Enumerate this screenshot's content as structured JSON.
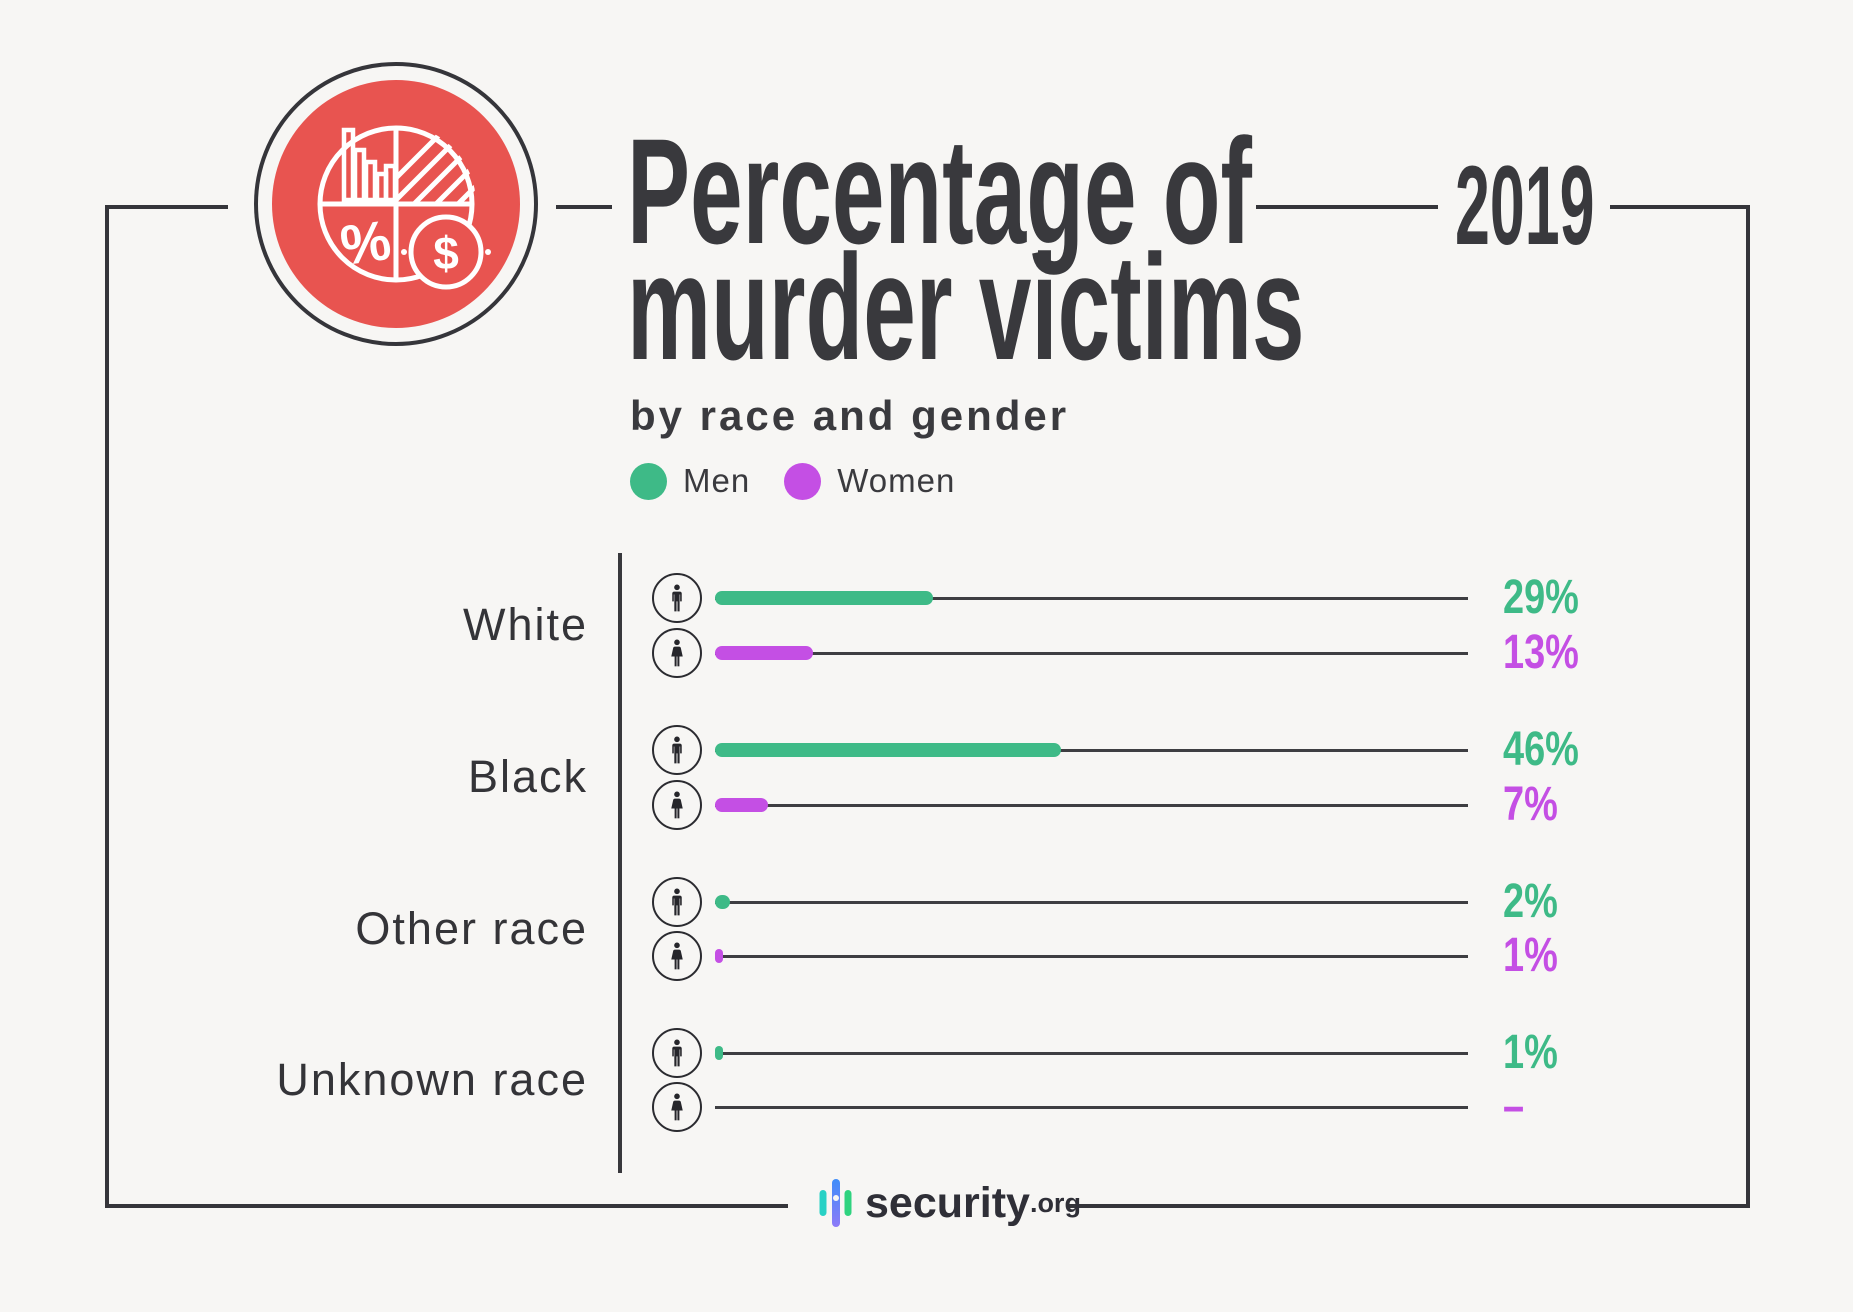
{
  "title": {
    "line1": "Percentage of",
    "line2": "murder victims",
    "year": "2019",
    "subtitle": "by race and gender"
  },
  "legend": [
    {
      "label": "Men",
      "color": "#3eba87"
    },
    {
      "label": "Women",
      "color": "#c44fe4"
    }
  ],
  "colors": {
    "men": "#3eba87",
    "women": "#c44fe4",
    "accent_red": "#e85450",
    "frame": "#35353a",
    "background": "#f7f6f4",
    "text": "#3a3a3e"
  },
  "chart_data": {
    "type": "bar",
    "orientation": "horizontal",
    "title": "Percentage of murder victims",
    "subtitle": "by race and gender",
    "year": "2019",
    "unit": "%",
    "categories": [
      "White",
      "Black",
      "Other race",
      "Unknown race"
    ],
    "series": [
      {
        "name": "Men",
        "color": "#3eba87",
        "values": [
          29,
          46,
          2,
          1
        ]
      },
      {
        "name": "Women",
        "color": "#c44fe4",
        "values": [
          13,
          7,
          1,
          null
        ]
      }
    ],
    "xlim": [
      0,
      100
    ],
    "value_labels": {
      "men": [
        "29%",
        "46%",
        "2%",
        "1%"
      ],
      "women": [
        "13%",
        "7%",
        "1%",
        "–"
      ]
    },
    "legend_position": "top-left",
    "grid": false,
    "source": "security.org"
  },
  "rows": [
    {
      "category": "White",
      "men": {
        "label": "29%",
        "pct": 29,
        "color": "#3eba87"
      },
      "women": {
        "label": "13%",
        "pct": 13,
        "color": "#c44fe4"
      }
    },
    {
      "category": "Black",
      "men": {
        "label": "46%",
        "pct": 46,
        "color": "#3eba87"
      },
      "women": {
        "label": "7%",
        "pct": 7,
        "color": "#c44fe4"
      }
    },
    {
      "category": "Other race",
      "men": {
        "label": "2%",
        "pct": 2,
        "color": "#3eba87"
      },
      "women": {
        "label": "1%",
        "pct": 1,
        "color": "#c44fe4"
      }
    },
    {
      "category": "Unknown race",
      "men": {
        "label": "1%",
        "pct": 1,
        "color": "#3eba87"
      },
      "women": {
        "label": "–",
        "pct": 0,
        "color": "#c44fe4"
      }
    }
  ],
  "badge": {
    "percent_glyph": "%",
    "dollar_glyph": "$"
  },
  "footer": {
    "brand": "security",
    "tld": ".org"
  }
}
